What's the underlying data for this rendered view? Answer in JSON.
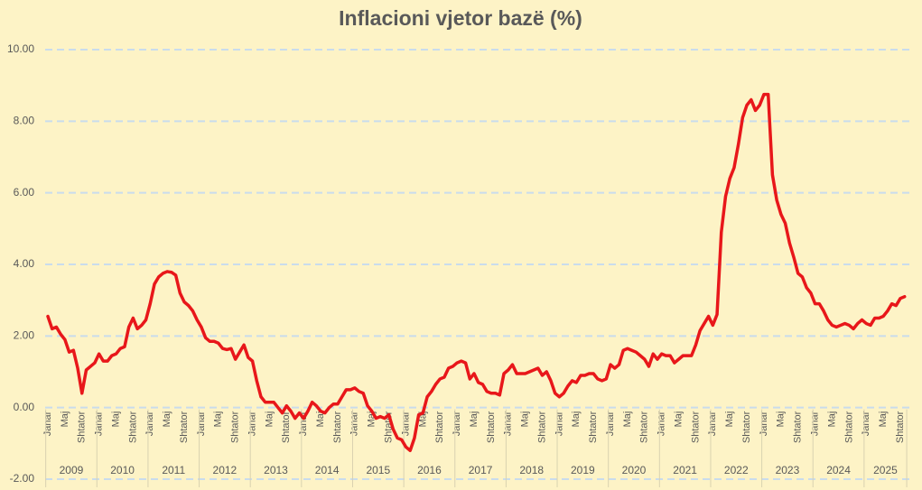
{
  "chart_data": {
    "type": "line",
    "title": "Inflacioni  vjetor bazë (%)",
    "color": "#e8171a",
    "grid": true,
    "ylim": [
      -2,
      10
    ],
    "yticks": [
      {
        "value": -2,
        "label": "-2.00"
      },
      {
        "value": 0,
        "label": "0.00"
      },
      {
        "value": 2,
        "label": "2.00"
      },
      {
        "value": 4,
        "label": "4.00"
      },
      {
        "value": 6,
        "label": "6.00"
      },
      {
        "value": 8,
        "label": "8.00"
      },
      {
        "value": 10,
        "label": "10.00"
      }
    ],
    "years": [
      "2009",
      "2010",
      "2011",
      "2012",
      "2013",
      "2014",
      "2015",
      "2016",
      "2017",
      "2018",
      "2019",
      "2020",
      "2021",
      "2022",
      "2023",
      "2024",
      "2025"
    ],
    "categories": [
      "Janar",
      null,
      null,
      null,
      "Maj",
      null,
      null,
      null,
      "Shtator",
      null,
      null,
      null,
      "Janar",
      null,
      null,
      null,
      "Maj",
      null,
      null,
      null,
      "Shtator",
      null,
      null,
      null,
      "Janar",
      null,
      null,
      null,
      "Maj",
      null,
      null,
      null,
      "Shtator",
      null,
      null,
      null,
      "Janar",
      null,
      null,
      null,
      "Maj",
      null,
      null,
      null,
      "Shtator",
      null,
      null,
      null,
      "Janar",
      null,
      null,
      null,
      "Maj",
      null,
      null,
      null,
      "Shtator",
      null,
      null,
      null,
      "Janar",
      null,
      null,
      null,
      "Maj",
      null,
      null,
      null,
      "Shtator",
      null,
      null,
      null,
      "Janar",
      null,
      null,
      null,
      "Maj",
      null,
      null,
      null,
      "Shtator",
      null,
      null,
      null,
      "Janar",
      null,
      null,
      null,
      "Maj",
      null,
      null,
      null,
      "Shtator",
      null,
      null,
      null,
      "Janar",
      null,
      null,
      null,
      "Maj",
      null,
      null,
      null,
      "Shtator",
      null,
      null,
      null,
      "Janar",
      null,
      null,
      null,
      "Maj",
      null,
      null,
      null,
      "Shtator",
      null,
      null,
      null,
      "Janar",
      null,
      null,
      null,
      "Maj",
      null,
      null,
      null,
      "Shtator",
      null,
      null,
      null,
      "Janar",
      null,
      null,
      null,
      "Maj",
      null,
      null,
      null,
      "Shtator",
      null,
      null,
      null,
      "Janar",
      null,
      null,
      null,
      "Maj",
      null,
      null,
      null,
      "Shtator",
      null,
      null,
      null,
      "Janar",
      null,
      null,
      null,
      "Maj",
      null,
      null,
      null,
      "Shtator",
      null,
      null,
      null,
      "Janar",
      null,
      null,
      null,
      "Maj",
      null,
      null,
      null,
      "Shtator",
      null,
      null,
      null,
      "Janar",
      null,
      null,
      null,
      "Maj",
      null,
      null,
      null,
      "Shtator",
      null,
      null,
      null,
      "Janar",
      null,
      null,
      null,
      "Maj",
      null,
      null,
      null,
      "Shtator",
      null
    ],
    "values": [
      2.55,
      2.2,
      2.25,
      2.05,
      1.9,
      1.55,
      1.6,
      1.1,
      0.4,
      1.05,
      1.15,
      1.25,
      1.5,
      1.3,
      1.3,
      1.45,
      1.5,
      1.65,
      1.7,
      2.25,
      2.5,
      2.2,
      2.3,
      2.45,
      2.9,
      3.45,
      3.65,
      3.75,
      3.8,
      3.78,
      3.7,
      3.2,
      2.95,
      2.85,
      2.7,
      2.45,
      2.25,
      1.95,
      1.85,
      1.85,
      1.8,
      1.65,
      1.62,
      1.65,
      1.35,
      1.55,
      1.75,
      1.4,
      1.3,
      0.75,
      0.3,
      0.15,
      0.15,
      0.15,
      0.0,
      -0.15,
      0.05,
      -0.1,
      -0.3,
      -0.15,
      -0.3,
      -0.1,
      0.15,
      0.05,
      -0.1,
      -0.15,
      0.0,
      0.1,
      0.1,
      0.3,
      0.5,
      0.5,
      0.55,
      0.45,
      0.4,
      0.05,
      -0.1,
      -0.3,
      -0.25,
      -0.3,
      -0.2,
      -0.6,
      -0.85,
      -0.9,
      -1.1,
      -1.2,
      -0.85,
      -0.2,
      -0.15,
      0.3,
      0.45,
      0.65,
      0.8,
      0.85,
      1.1,
      1.15,
      1.25,
      1.3,
      1.25,
      0.8,
      0.95,
      0.7,
      0.65,
      0.45,
      0.4,
      0.4,
      0.35,
      0.95,
      1.05,
      1.2,
      0.95,
      0.95,
      0.95,
      1.0,
      1.05,
      1.1,
      0.9,
      1.0,
      0.75,
      0.4,
      0.3,
      0.4,
      0.6,
      0.75,
      0.7,
      0.9,
      0.9,
      0.95,
      0.95,
      0.8,
      0.75,
      0.8,
      1.2,
      1.1,
      1.2,
      1.6,
      1.65,
      1.6,
      1.55,
      1.45,
      1.35,
      1.15,
      1.5,
      1.35,
      1.5,
      1.45,
      1.45,
      1.25,
      1.35,
      1.45,
      1.45,
      1.45,
      1.75,
      2.15,
      2.35,
      2.55,
      2.3,
      2.6,
      4.9,
      5.9,
      6.4,
      6.7,
      7.35,
      8.1,
      8.45,
      8.6,
      8.3,
      8.45,
      8.75,
      8.75,
      6.5,
      5.8,
      5.4,
      5.15,
      4.6,
      4.2,
      3.75,
      3.65,
      3.35,
      3.2,
      2.9,
      2.9,
      2.7,
      2.45,
      2.3,
      2.25,
      2.3,
      2.35,
      2.3,
      2.2,
      2.35,
      2.45,
      2.35,
      2.3,
      2.5,
      2.5,
      2.55,
      2.7,
      2.9,
      2.85,
      3.05,
      3.1
    ]
  }
}
